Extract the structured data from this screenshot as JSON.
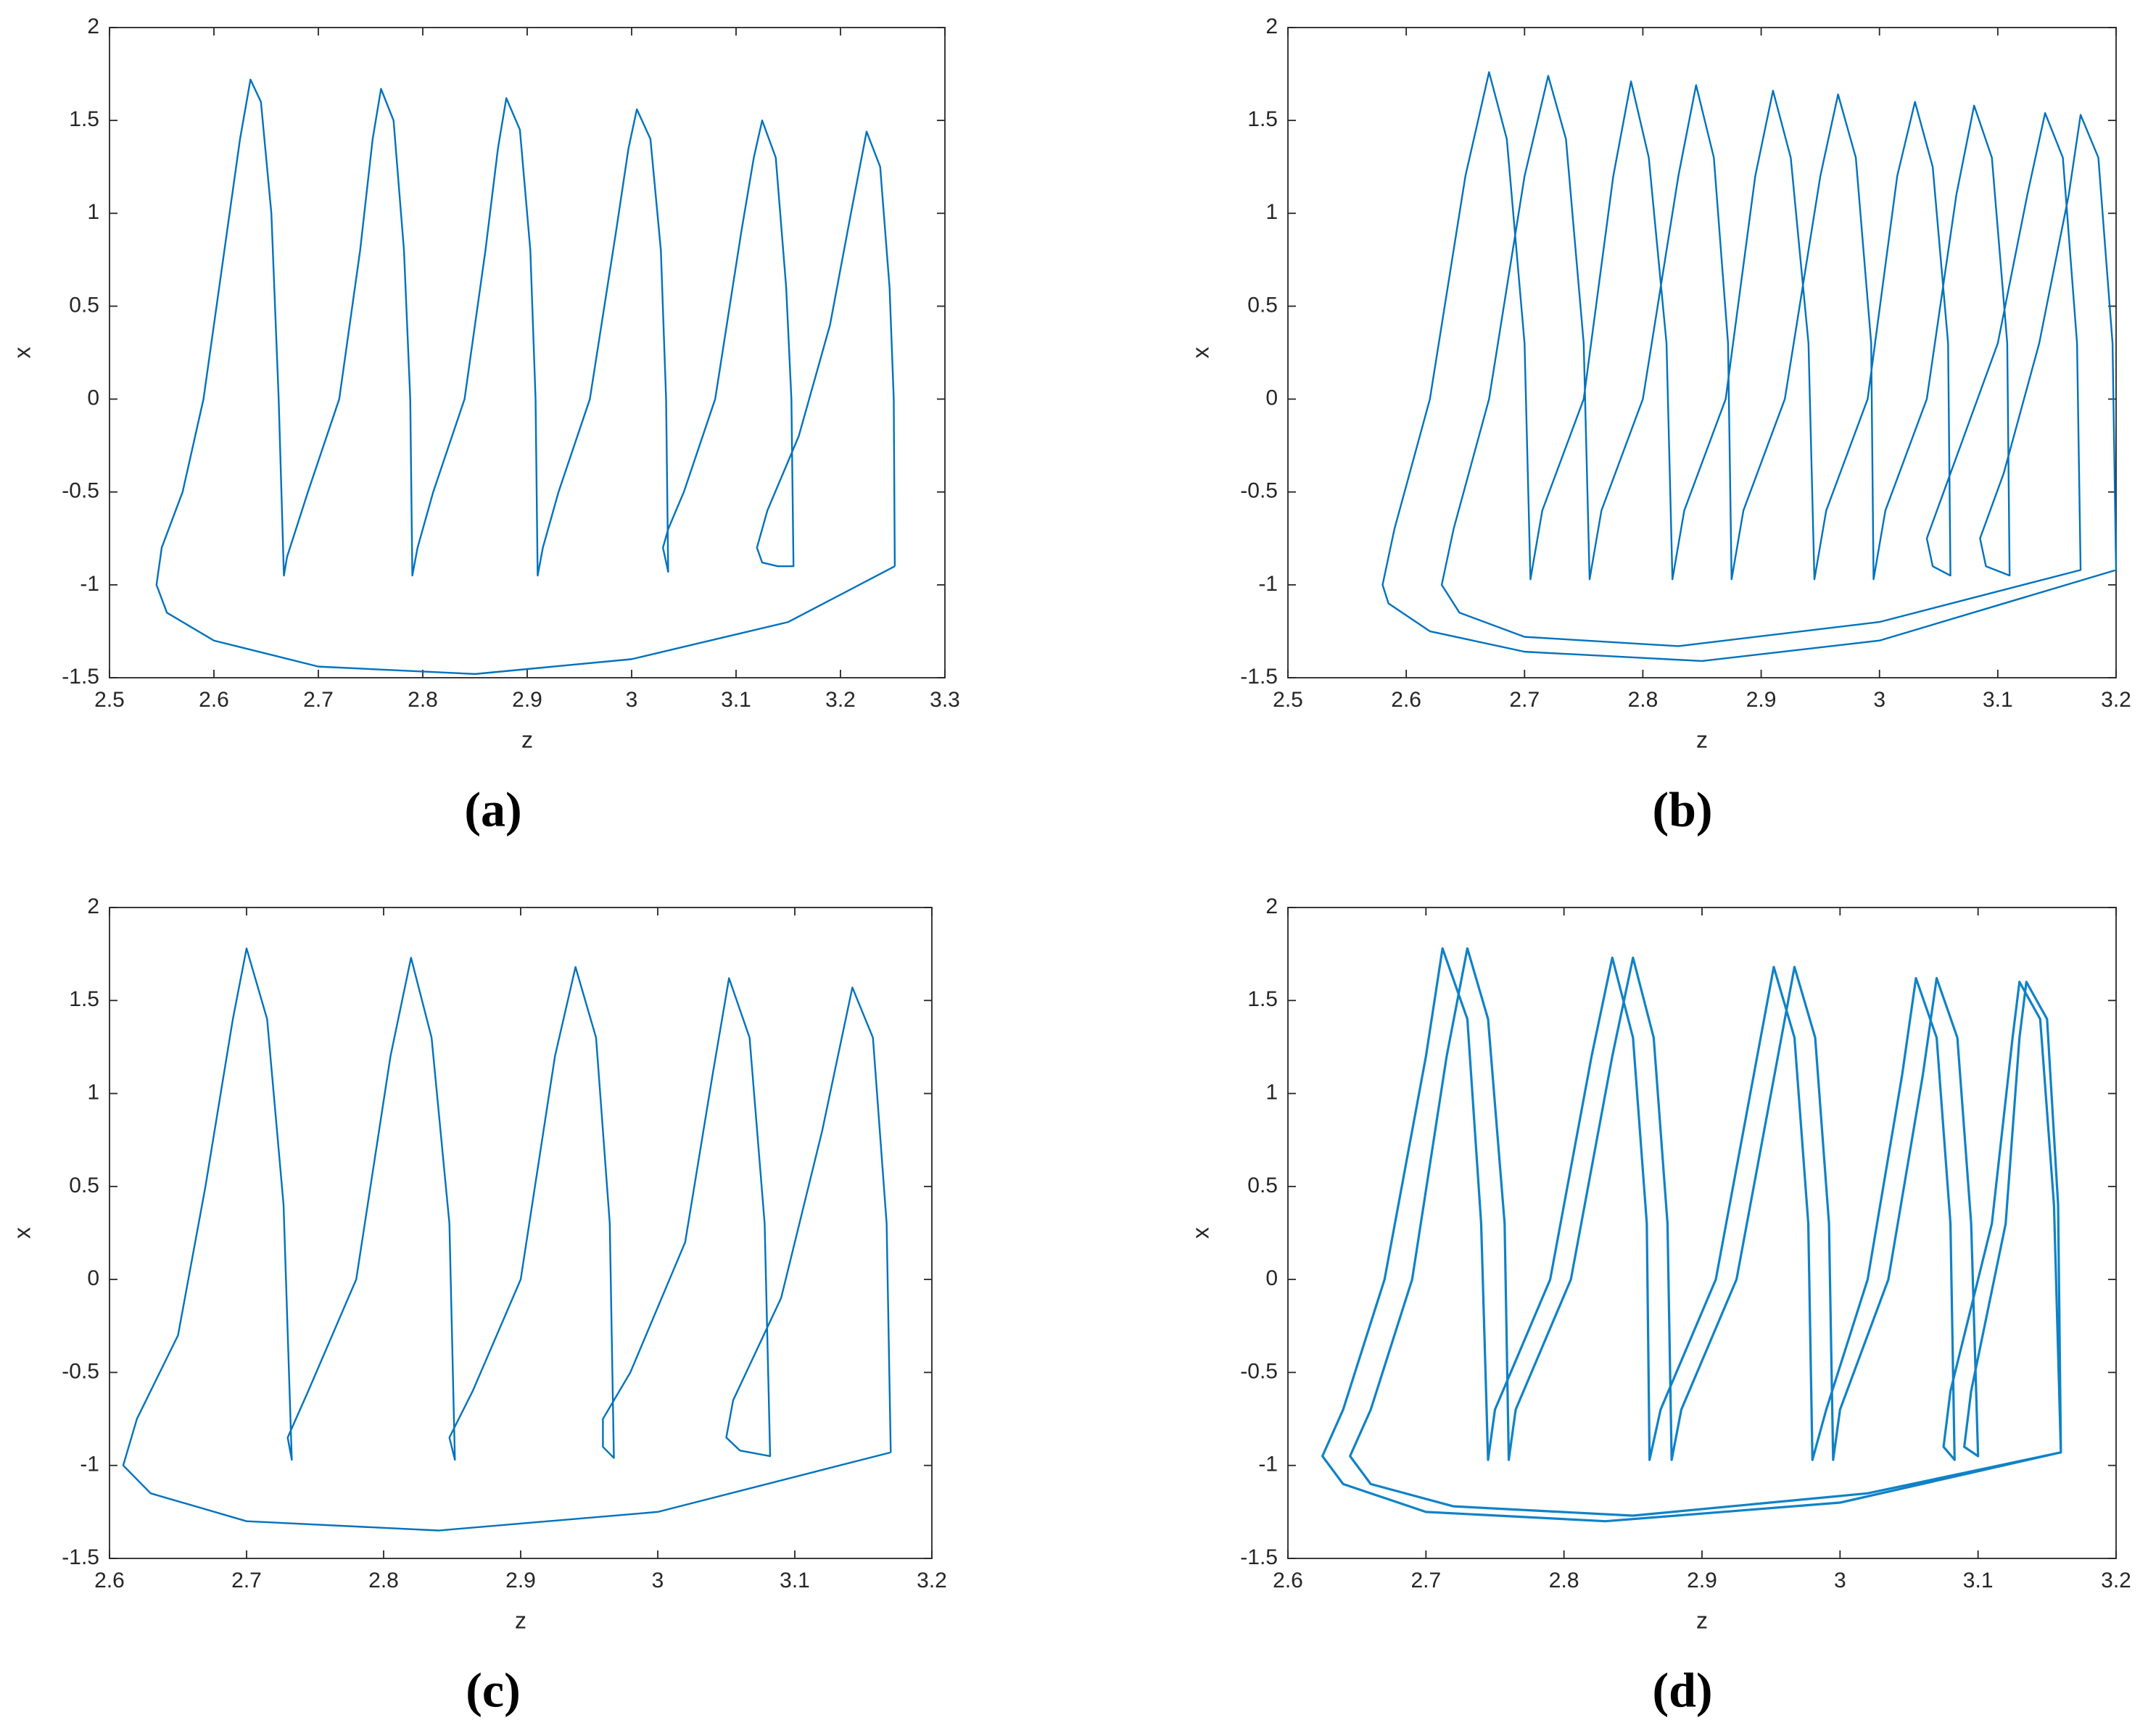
{
  "chart_data": [
    {
      "type": "line",
      "caption": "(a)",
      "xlabel": "z",
      "ylabel": "x",
      "color": "#0072bd",
      "xlim": [
        2.5,
        3.3
      ],
      "ylim": [
        -1.5,
        2
      ],
      "xticks": [
        2.5,
        2.6,
        2.7,
        2.8,
        2.9,
        3,
        3.1,
        3.2,
        3.3
      ],
      "yticks": [
        -1.5,
        -1,
        -0.5,
        0,
        0.5,
        1,
        1.5,
        2
      ],
      "x": [
        3.252,
        3.15,
        3.0,
        2.85,
        2.7,
        2.6,
        2.555,
        2.545,
        2.55,
        2.57,
        2.59,
        2.61,
        2.625,
        2.635,
        2.645,
        2.655,
        2.662,
        2.667,
        2.67,
        2.69,
        2.72,
        2.74,
        2.752,
        2.76,
        2.772,
        2.782,
        2.788,
        2.79,
        2.795,
        2.81,
        2.84,
        2.86,
        2.872,
        2.88,
        2.893,
        2.903,
        2.908,
        2.91,
        2.915,
        2.93,
        2.96,
        2.985,
        2.997,
        3.005,
        3.018,
        3.028,
        3.033,
        3.035,
        3.03,
        3.035,
        3.05,
        3.08,
        3.105,
        3.117,
        3.125,
        3.138,
        3.148,
        3.153,
        3.155,
        3.14,
        3.125,
        3.12,
        3.13,
        3.16,
        3.19,
        3.21,
        3.225,
        3.238,
        3.247,
        3.251,
        3.252
      ],
      "values": [
        -0.9,
        -1.2,
        -1.4,
        -1.48,
        -1.44,
        -1.3,
        -1.15,
        -1.0,
        -0.8,
        -0.5,
        0,
        0.8,
        1.4,
        1.72,
        1.6,
        1.0,
        0,
        -0.95,
        -0.85,
        -0.5,
        0,
        0.8,
        1.4,
        1.67,
        1.5,
        0.8,
        0,
        -0.95,
        -0.8,
        -0.5,
        0,
        0.8,
        1.35,
        1.62,
        1.45,
        0.8,
        0,
        -0.95,
        -0.8,
        -0.5,
        0,
        0.9,
        1.35,
        1.56,
        1.4,
        0.8,
        0,
        -0.93,
        -0.8,
        -0.7,
        -0.5,
        0,
        0.9,
        1.3,
        1.5,
        1.3,
        0.6,
        0,
        -0.9,
        -0.9,
        -0.88,
        -0.8,
        -0.6,
        -0.2,
        0.4,
        1.0,
        1.44,
        1.25,
        0.6,
        0,
        -0.9
      ]
    },
    {
      "type": "line",
      "caption": "(b)",
      "xlabel": "z",
      "ylabel": "x",
      "color": "#0072bd",
      "xlim": [
        2.5,
        3.2
      ],
      "ylim": [
        -1.5,
        2
      ],
      "xticks": [
        2.5,
        2.6,
        2.7,
        2.8,
        2.9,
        3,
        3.1,
        3.2
      ],
      "yticks": [
        -1.5,
        -1,
        -0.5,
        0,
        0.5,
        1,
        1.5,
        2
      ],
      "x": [
        3.2,
        3.0,
        2.85,
        2.7,
        2.62,
        2.585,
        2.58,
        2.59,
        2.62,
        2.65,
        2.67,
        2.685,
        2.7,
        2.705,
        2.715,
        2.75,
        2.775,
        2.79,
        2.805,
        2.82,
        2.825,
        2.835,
        2.87,
        2.895,
        2.91,
        2.925,
        2.94,
        2.945,
        2.955,
        2.99,
        3.015,
        3.03,
        3.045,
        3.058,
        3.06,
        3.045,
        3.04,
        3.06,
        3.1,
        3.125,
        3.14,
        3.155,
        3.167,
        3.17,
        3.0,
        2.83,
        2.7,
        2.645,
        2.63,
        2.64,
        2.67,
        2.7,
        2.72,
        2.735,
        2.75,
        2.755,
        2.765,
        2.8,
        2.83,
        2.845,
        2.86,
        2.872,
        2.875,
        2.885,
        2.92,
        2.95,
        2.965,
        2.98,
        2.993,
        2.995,
        3.005,
        3.04,
        3.065,
        3.08,
        3.095,
        3.108,
        3.11,
        3.09,
        3.085,
        3.105,
        3.135,
        3.16,
        3.17,
        3.185,
        3.197,
        3.2
      ],
      "values": [
        -0.92,
        -1.3,
        -1.41,
        -1.36,
        -1.25,
        -1.1,
        -1.0,
        -0.7,
        0,
        1.2,
        1.76,
        1.4,
        0.3,
        -0.97,
        -0.6,
        0,
        1.2,
        1.71,
        1.3,
        0.3,
        -0.97,
        -0.6,
        0,
        1.2,
        1.66,
        1.3,
        0.3,
        -0.97,
        -0.6,
        0,
        1.2,
        1.6,
        1.25,
        0.3,
        -0.95,
        -0.9,
        -0.75,
        -0.4,
        0.3,
        1.1,
        1.54,
        1.3,
        0.3,
        -0.92,
        -1.2,
        -1.33,
        -1.28,
        -1.15,
        -1.0,
        -0.7,
        0,
        1.2,
        1.74,
        1.4,
        0.3,
        -0.97,
        -0.6,
        0,
        1.2,
        1.69,
        1.3,
        0.3,
        -0.97,
        -0.6,
        0,
        1.2,
        1.64,
        1.3,
        0.3,
        -0.97,
        -0.6,
        0,
        1.1,
        1.58,
        1.3,
        0.3,
        -0.95,
        -0.9,
        -0.75,
        -0.4,
        0.3,
        1.1,
        1.53,
        1.3,
        0.3,
        -0.92
      ]
    },
    {
      "type": "line",
      "caption": "(c)",
      "xlabel": "z",
      "ylabel": "x",
      "color": "#0072bd",
      "xlim": [
        2.6,
        3.2
      ],
      "ylim": [
        -1.5,
        2
      ],
      "xticks": [
        2.6,
        2.7,
        2.8,
        2.9,
        3,
        3.1,
        3.2
      ],
      "yticks": [
        -1.5,
        -1,
        -0.5,
        0,
        0.5,
        1,
        1.5,
        2
      ],
      "x": [
        3.17,
        3.0,
        2.84,
        2.7,
        2.63,
        2.61,
        2.62,
        2.65,
        2.67,
        2.69,
        2.7,
        2.715,
        2.727,
        2.733,
        2.73,
        2.745,
        2.78,
        2.805,
        2.82,
        2.835,
        2.848,
        2.852,
        2.848,
        2.865,
        2.9,
        2.925,
        2.94,
        2.955,
        2.965,
        2.968,
        2.96,
        2.96,
        2.98,
        3.02,
        3.04,
        3.052,
        3.067,
        3.078,
        3.082,
        3.06,
        3.05,
        3.055,
        3.09,
        3.12,
        3.142,
        3.157,
        3.167,
        3.17
      ],
      "values": [
        -0.93,
        -1.25,
        -1.35,
        -1.3,
        -1.15,
        -1.0,
        -0.75,
        -0.3,
        0.5,
        1.4,
        1.78,
        1.4,
        0.4,
        -0.97,
        -0.85,
        -0.6,
        0,
        1.2,
        1.73,
        1.3,
        0.3,
        -0.97,
        -0.85,
        -0.6,
        0,
        1.2,
        1.68,
        1.3,
        0.3,
        -0.96,
        -0.9,
        -0.75,
        -0.5,
        0.2,
        1.1,
        1.62,
        1.3,
        0.3,
        -0.95,
        -0.92,
        -0.85,
        -0.65,
        -0.1,
        0.8,
        1.57,
        1.3,
        0.3,
        -0.93
      ]
    },
    {
      "type": "line",
      "caption": "(d)",
      "xlabel": "z",
      "ylabel": "x",
      "color": "#0f82c6",
      "xlim": [
        2.6,
        3.2
      ],
      "ylim": [
        -1.5,
        2
      ],
      "xticks": [
        2.6,
        2.7,
        2.8,
        2.9,
        3,
        3.1,
        3.2
      ],
      "yticks": [
        -1.5,
        -1,
        -0.5,
        0,
        0.5,
        1,
        1.5,
        2
      ],
      "x": [
        3.16,
        3.0,
        2.83,
        2.7,
        2.64,
        2.625,
        2.64,
        2.67,
        2.7,
        2.712,
        2.73,
        2.74,
        2.745,
        2.75,
        2.79,
        2.82,
        2.835,
        2.85,
        2.86,
        2.862,
        2.87,
        2.91,
        2.94,
        2.952,
        2.967,
        2.977,
        2.98,
        2.99,
        3.02,
        3.045,
        3.055,
        3.07,
        3.08,
        3.083,
        3.075,
        3.08,
        3.11,
        3.125,
        3.13,
        3.145,
        3.155,
        3.16,
        3.02,
        2.85,
        2.72,
        2.66,
        2.645,
        2.66,
        2.69,
        2.715,
        2.73,
        2.745,
        2.757,
        2.76,
        2.765,
        2.805,
        2.835,
        2.85,
        2.865,
        2.875,
        2.878,
        2.885,
        2.925,
        2.955,
        2.967,
        2.982,
        2.992,
        2.995,
        3.0,
        3.035,
        3.06,
        3.07,
        3.085,
        3.095,
        3.1,
        3.09,
        3.095,
        3.12,
        3.13,
        3.135,
        3.15,
        3.158,
        3.16
      ],
      "values": [
        -0.93,
        -1.2,
        -1.3,
        -1.25,
        -1.1,
        -0.95,
        -0.7,
        0,
        1.2,
        1.78,
        1.4,
        0.3,
        -0.97,
        -0.7,
        0,
        1.2,
        1.73,
        1.3,
        0.3,
        -0.97,
        -0.7,
        0,
        1.2,
        1.68,
        1.3,
        0.3,
        -0.97,
        -0.7,
        0,
        1.1,
        1.62,
        1.3,
        0.3,
        -0.97,
        -0.9,
        -0.6,
        0.3,
        1.3,
        1.6,
        1.4,
        0.4,
        -0.93,
        -1.15,
        -1.27,
        -1.22,
        -1.1,
        -0.95,
        -0.7,
        0,
        1.2,
        1.78,
        1.4,
        0.3,
        -0.97,
        -0.7,
        0,
        1.2,
        1.73,
        1.3,
        0.3,
        -0.97,
        -0.7,
        0,
        1.2,
        1.68,
        1.3,
        0.3,
        -0.97,
        -0.7,
        0,
        1.1,
        1.62,
        1.3,
        0.3,
        -0.95,
        -0.9,
        -0.6,
        0.3,
        1.3,
        1.6,
        1.4,
        0.4,
        -0.93
      ]
    }
  ]
}
